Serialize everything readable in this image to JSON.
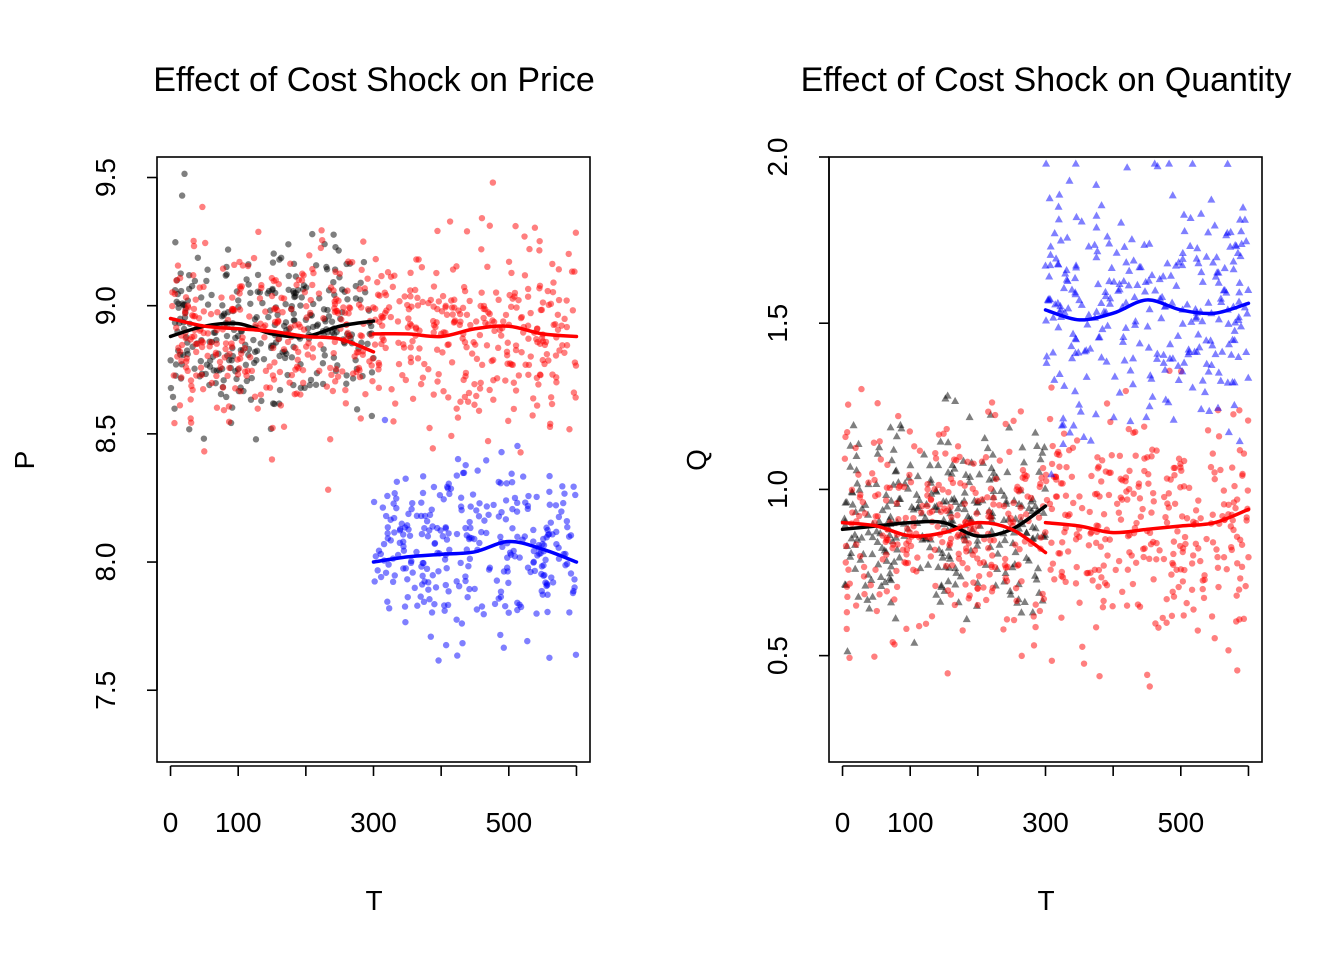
{
  "chart_data": [
    {
      "type": "scatter",
      "title": "Effect of Cost Shock on Price",
      "xlabel": "T",
      "ylabel": "P",
      "xlim": [
        -20,
        620
      ],
      "ylim": [
        7.22,
        9.58
      ],
      "xticks": [
        0,
        100,
        200,
        300,
        400,
        500,
        600
      ],
      "xtick_labels": [
        "0",
        "100",
        "",
        "300",
        "",
        "500",
        ""
      ],
      "yticks": [
        7.5,
        8.0,
        8.5,
        9.0,
        9.5
      ],
      "ytick_labels": [
        "7.5",
        "8.0",
        "8.5",
        "9.0",
        "9.5"
      ],
      "series": [
        {
          "color": "#000000",
          "marker": "circle",
          "x_range": [
            0,
            300
          ],
          "y_center": 8.91,
          "y_spread": 0.17,
          "n_points": 300,
          "seed": 11,
          "smooth": [
            [
              0,
              8.88
            ],
            [
              50,
              8.92
            ],
            [
              100,
              8.93
            ],
            [
              150,
              8.89
            ],
            [
              200,
              8.88
            ],
            [
              250,
              8.92
            ],
            [
              300,
              8.94
            ]
          ]
        },
        {
          "color": "#ff0000",
          "marker": "circle",
          "x_range": [
            0,
            600
          ],
          "y_center": 8.9,
          "y_spread": 0.17,
          "n_points": 600,
          "seed": 23,
          "smooth": [
            [
              0,
              8.95
            ],
            [
              50,
              8.92
            ],
            [
              100,
              8.91
            ],
            [
              150,
              8.9
            ],
            [
              200,
              8.88
            ],
            [
              250,
              8.87
            ],
            [
              300,
              8.82
            ]
          ],
          "smooth2": [
            [
              300,
              8.89
            ],
            [
              350,
              8.89
            ],
            [
              400,
              8.88
            ],
            [
              450,
              8.91
            ],
            [
              500,
              8.92
            ],
            [
              550,
              8.89
            ],
            [
              600,
              8.88
            ]
          ]
        },
        {
          "color": "#0000ff",
          "marker": "circle",
          "x_range": [
            300,
            600
          ],
          "y_center": 8.04,
          "y_spread": 0.17,
          "n_points": 300,
          "seed": 37,
          "smooth": [
            [
              300,
              8.0
            ],
            [
              350,
              8.02
            ],
            [
              400,
              8.03
            ],
            [
              450,
              8.04
            ],
            [
              500,
              8.08
            ],
            [
              550,
              8.05
            ],
            [
              600,
              8.0
            ]
          ]
        }
      ]
    },
    {
      "type": "scatter",
      "title": "Effect of Cost Shock on Quantity",
      "xlabel": "T",
      "ylabel": "Q",
      "xlim": [
        -20,
        620
      ],
      "ylim": [
        0.18,
        2.0
      ],
      "xticks": [
        0,
        100,
        200,
        300,
        400,
        500,
        600
      ],
      "xtick_labels": [
        "0",
        "100",
        "",
        "300",
        "",
        "500",
        ""
      ],
      "yticks": [
        0.5,
        1.0,
        1.5,
        2.0
      ],
      "ytick_labels": [
        "0.5",
        "1.0",
        "1.5",
        "2.0"
      ],
      "series": [
        {
          "color": "#000000",
          "marker": "triangle",
          "x_range": [
            0,
            300
          ],
          "y_center": 0.89,
          "y_spread": 0.15,
          "n_points": 300,
          "seed": 41,
          "smooth": [
            [
              0,
              0.88
            ],
            [
              50,
              0.89
            ],
            [
              100,
              0.9
            ],
            [
              150,
              0.9
            ],
            [
              200,
              0.86
            ],
            [
              250,
              0.88
            ],
            [
              300,
              0.95
            ]
          ]
        },
        {
          "color": "#ff0000",
          "marker": "circle",
          "x_range": [
            0,
            600
          ],
          "y_center": 0.89,
          "y_spread": 0.17,
          "n_points": 600,
          "seed": 53,
          "smooth": [
            [
              0,
              0.9
            ],
            [
              50,
              0.89
            ],
            [
              100,
              0.86
            ],
            [
              150,
              0.87
            ],
            [
              200,
              0.9
            ],
            [
              250,
              0.88
            ],
            [
              300,
              0.81
            ]
          ],
          "smooth2": [
            [
              300,
              0.9
            ],
            [
              350,
              0.89
            ],
            [
              400,
              0.87
            ],
            [
              450,
              0.88
            ],
            [
              500,
              0.89
            ],
            [
              550,
              0.9
            ],
            [
              600,
              0.94
            ]
          ]
        },
        {
          "color": "#0000ff",
          "marker": "triangle",
          "x_range": [
            300,
            600
          ],
          "y_center": 1.54,
          "y_spread": 0.17,
          "n_points": 300,
          "seed": 67,
          "smooth": [
            [
              300,
              1.54
            ],
            [
              350,
              1.51
            ],
            [
              400,
              1.53
            ],
            [
              450,
              1.57
            ],
            [
              500,
              1.54
            ],
            [
              550,
              1.53
            ],
            [
              600,
              1.56
            ]
          ]
        }
      ]
    }
  ]
}
